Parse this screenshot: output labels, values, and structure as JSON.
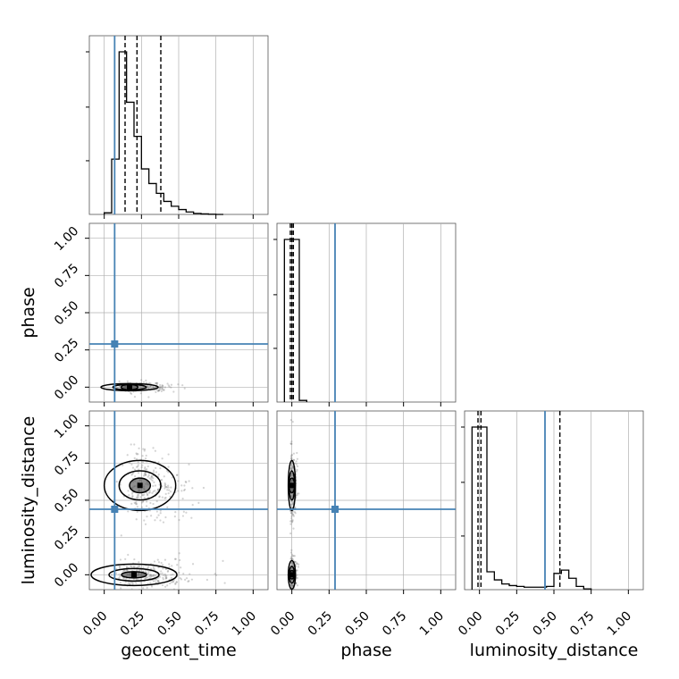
{
  "figure": {
    "type": "corner_plot",
    "parameters": [
      "geocent_time",
      "phase",
      "luminosity_distance"
    ],
    "colors": {
      "truth": "#4682b4",
      "histogram": "#000000",
      "grid": "#b0b0b0",
      "scatter": "#808080",
      "background": "#ffffff"
    }
  },
  "labels": {
    "x_geocent": "geocent_time",
    "x_phase": "phase",
    "x_lumdist": "luminosity_distance",
    "y_phase": "phase",
    "y_lumdist": "luminosity_distance"
  },
  "ticks": [
    "0.00",
    "0.25",
    "0.50",
    "0.75",
    "1.00"
  ],
  "chart_data": {
    "type": "corner",
    "axis_range": [
      -0.1,
      1.1
    ],
    "grid": true,
    "truths": {
      "geocent_time": 0.07,
      "phase": 0.29,
      "luminosity_distance": 0.44
    },
    "marginals": [
      {
        "parameter": "geocent_time",
        "type": "histogram",
        "bin_edges": [
          0.0,
          0.05,
          0.1,
          0.15,
          0.2,
          0.25,
          0.3,
          0.35,
          0.4,
          0.45,
          0.5,
          0.55,
          0.6,
          0.65,
          0.7,
          0.75,
          0.8
        ],
        "counts": [
          0.01,
          0.34,
          1.0,
          0.69,
          0.48,
          0.28,
          0.19,
          0.13,
          0.08,
          0.05,
          0.03,
          0.015,
          0.006,
          0.003,
          0.001,
          0.0
        ],
        "quantiles": [
          0.14,
          0.22,
          0.38
        ]
      },
      {
        "parameter": "phase",
        "type": "histogram",
        "bin_edges": [
          -0.05,
          0.0,
          0.05,
          0.1
        ],
        "counts": [
          1.0,
          1.0,
          0.01
        ],
        "quantiles": [
          -0.01,
          0.0,
          0.01
        ]
      },
      {
        "parameter": "luminosity_distance",
        "type": "histogram",
        "bin_edges": [
          -0.05,
          0.0,
          0.05,
          0.1,
          0.15,
          0.2,
          0.25,
          0.3,
          0.35,
          0.4,
          0.45,
          0.5,
          0.55,
          0.6,
          0.65,
          0.7,
          0.75
        ],
        "counts": [
          1.0,
          1.0,
          0.11,
          0.06,
          0.035,
          0.025,
          0.02,
          0.015,
          0.015,
          0.015,
          0.02,
          0.1,
          0.12,
          0.07,
          0.02,
          0.005
        ],
        "quantiles": [
          -0.01,
          0.01,
          0.54
        ]
      }
    ],
    "joint": [
      {
        "x": "geocent_time",
        "y": "phase",
        "modes": [
          {
            "x": 0.17,
            "y": 0.0,
            "sx": 0.08,
            "sy": 0.01
          }
        ]
      },
      {
        "x": "geocent_time",
        "y": "luminosity_distance",
        "modes": [
          {
            "x": 0.2,
            "y": 0.0,
            "sx": 0.12,
            "sy": 0.03
          },
          {
            "x": 0.24,
            "y": 0.6,
            "sx": 0.1,
            "sy": 0.07
          }
        ]
      },
      {
        "x": "phase",
        "y": "luminosity_distance",
        "modes": [
          {
            "x": 0.0,
            "y": 0.0,
            "sx": 0.01,
            "sy": 0.04
          },
          {
            "x": 0.0,
            "y": 0.6,
            "sx": 0.01,
            "sy": 0.07
          }
        ]
      }
    ]
  }
}
